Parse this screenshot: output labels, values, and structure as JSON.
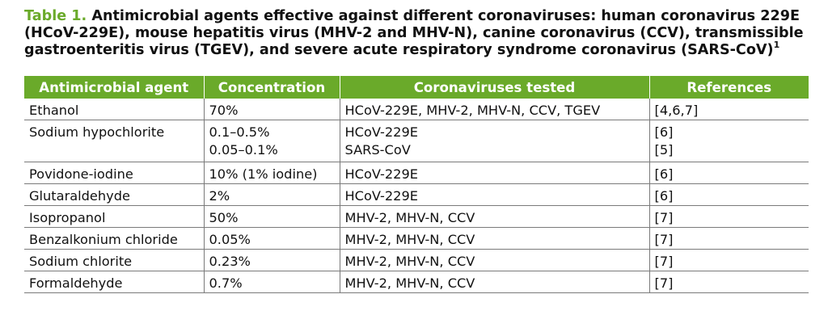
{
  "caption": {
    "label": "Table 1.",
    "text": "Antimicrobial agents effective against different coronaviruses: human coronavirus 229E (HCoV-229E), mouse hepatitis virus (MHV-2 and MHV-N), canine coronavirus (CCV), transmissible gastroenteritis virus (TGEV), and severe acute respiratory syndrome coronavirus (SARS-CoV)",
    "superscript": "1"
  },
  "columns": [
    "Antimicrobial agent",
    "Concentration",
    "Coronaviruses tested",
    "References"
  ],
  "rows": [
    {
      "agent": "Ethanol",
      "concentration": [
        "70%"
      ],
      "viruses": [
        "HCoV-229E, MHV-2, MHV-N, CCV, TGEV"
      ],
      "refs": [
        "[4,6,7]"
      ]
    },
    {
      "agent": "Sodium hypochlorite",
      "concentration": [
        "0.1–0.5%",
        "0.05–0.1%"
      ],
      "viruses": [
        "HCoV-229E",
        "SARS-CoV"
      ],
      "refs": [
        "[6]",
        "[5]"
      ]
    },
    {
      "agent": "Povidone-iodine",
      "concentration": [
        "10% (1% iodine)"
      ],
      "viruses": [
        "HCoV-229E"
      ],
      "refs": [
        "[6]"
      ]
    },
    {
      "agent": "Glutaraldehyde",
      "concentration": [
        "2%"
      ],
      "viruses": [
        "HCoV-229E"
      ],
      "refs": [
        "[6]"
      ]
    },
    {
      "agent": "Isopropanol",
      "concentration": [
        "50%"
      ],
      "viruses": [
        "MHV-2, MHV-N, CCV"
      ],
      "refs": [
        "[7]"
      ]
    },
    {
      "agent": "Benzalkonium chloride",
      "concentration": [
        "0.05%"
      ],
      "viruses": [
        "MHV-2, MHV-N, CCV"
      ],
      "refs": [
        "[7]"
      ]
    },
    {
      "agent": "Sodium chlorite",
      "concentration": [
        "0.23%"
      ],
      "viruses": [
        "MHV-2, MHV-N, CCV"
      ],
      "refs": [
        "[7]"
      ]
    },
    {
      "agent": "Formaldehyde",
      "concentration": [
        "0.7%"
      ],
      "viruses": [
        "MHV-2, MHV-N, CCV"
      ],
      "refs": [
        "[7]"
      ]
    }
  ],
  "colors": {
    "header_bg": "#6aaa2a",
    "header_text": "#ffffff",
    "label": "#6aaa2a",
    "rule": "#7a7a7a"
  }
}
